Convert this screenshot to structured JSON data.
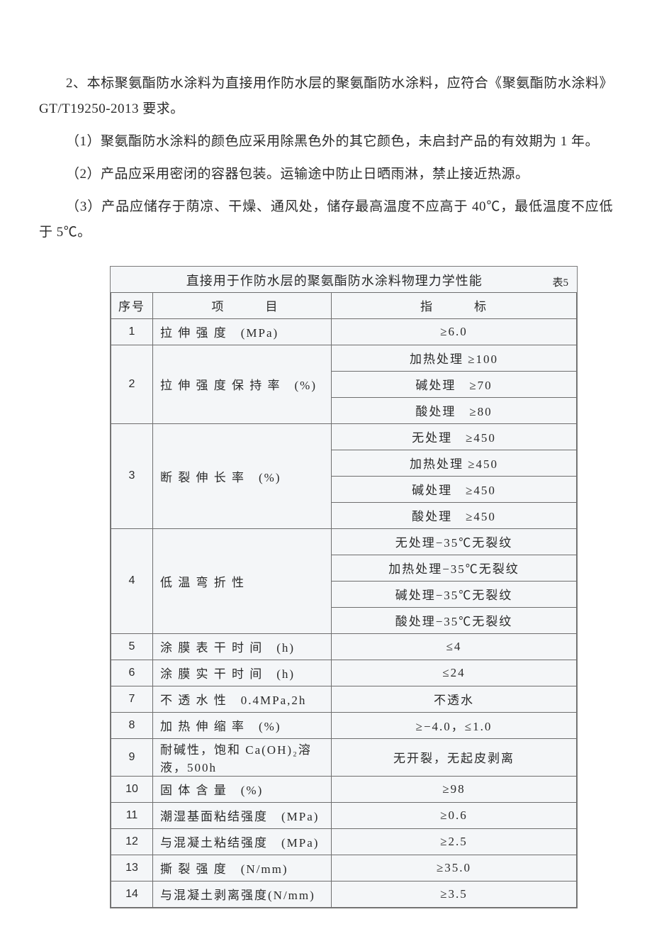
{
  "prose": {
    "p1": "2、本标聚氨酯防水涂料为直接用作防水层的聚氨酯防水涂料，应符合《聚氨酯防水涂料》GT/T19250-2013 要求。",
    "p2": "（1）聚氨酯防水涂料的颜色应采用除黑色外的其它颜色，未启封产品的有效期为 1 年。",
    "p3": "（2）产品应采用密闭的容器包装。运输途中防止日晒雨淋，禁止接近热源。",
    "p4": "（3）产品应储存于荫凉、干燥、通风处，储存最高温度不应高于 40℃，最低温度不应低于 5℃。"
  },
  "table": {
    "caption_title": "直接用于作防水层的聚氨酯防水涂料物理力学性能",
    "caption_num": "表5",
    "columns": {
      "seq": "序号",
      "item": "项　　　目",
      "ind": "指　　　标"
    },
    "rows": [
      {
        "seq": "1",
        "item": "拉 伸 强 度　(MPa)",
        "inds": [
          "≥6.0"
        ]
      },
      {
        "seq": "2",
        "item": "拉 伸 强 度 保 持 率　(%)",
        "inds": [
          "加热处理 ≥100",
          "碱处理　≥70",
          "酸处理　≥80"
        ]
      },
      {
        "seq": "3",
        "item": "断 裂 伸 长 率　(%)",
        "inds": [
          "无处理　≥450",
          "加热处理 ≥450",
          "碱处理　≥450",
          "酸处理　≥450"
        ]
      },
      {
        "seq": "4",
        "item": "低 温 弯 折 性",
        "inds": [
          "无处理−35℃无裂纹",
          "加热处理−35℃无裂纹",
          "碱处理−35℃无裂纹",
          "酸处理−35℃无裂纹"
        ]
      },
      {
        "seq": "5",
        "item": "涂 膜 表 干 时 间　(h)",
        "inds": [
          "≤4"
        ]
      },
      {
        "seq": "6",
        "item": "涂 膜 实 干 时 间　(h)",
        "inds": [
          "≤24"
        ]
      },
      {
        "seq": "7",
        "item": "不 透 水 性　0.4MPa,2h",
        "inds": [
          "不透水"
        ]
      },
      {
        "seq": "8",
        "item": "加 热 伸 缩 率　(%)",
        "inds": [
          "≥−4.0，≤1.0"
        ]
      },
      {
        "seq": "9",
        "item": "耐碱性，饱和 Ca(OH)₂溶液，500h",
        "inds": [
          "无开裂，无起皮剥离"
        ]
      },
      {
        "seq": "10",
        "item": "固 体 含 量　(%)",
        "inds": [
          "≥98"
        ]
      },
      {
        "seq": "11",
        "item": "潮湿基面粘结强度　(MPa)",
        "inds": [
          "≥0.6"
        ]
      },
      {
        "seq": "12",
        "item": "与混凝土粘结强度　(MPa)",
        "inds": [
          "≥2.5"
        ]
      },
      {
        "seq": "13",
        "item": "撕 裂 强 度　(N/mm)",
        "inds": [
          "≥35.0"
        ]
      },
      {
        "seq": "14",
        "item": "与混凝土剥离强度(N/mm)",
        "inds": [
          "≥3.5"
        ]
      }
    ]
  }
}
